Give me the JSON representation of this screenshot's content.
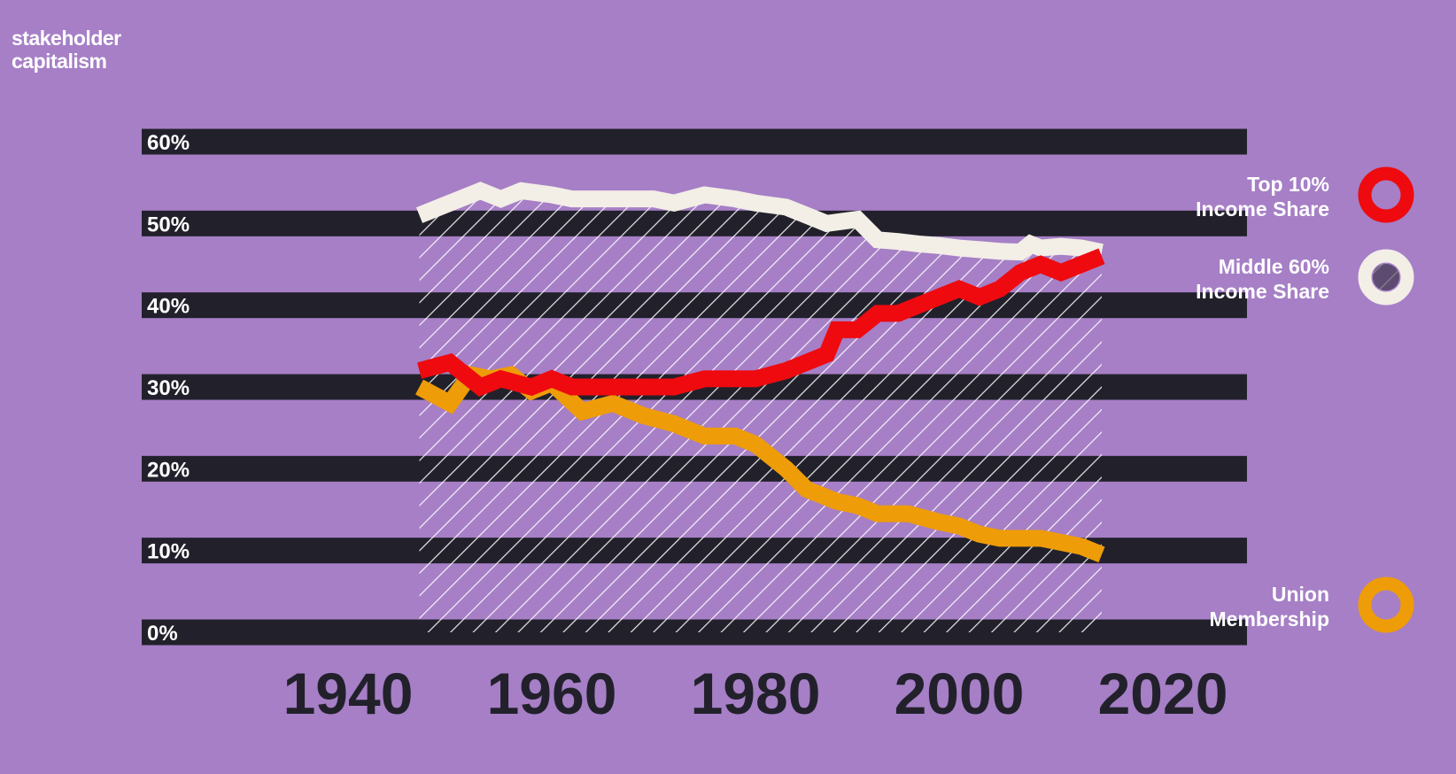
{
  "brand": {
    "line1": "stakeholder",
    "line2": "capitalism"
  },
  "colors": {
    "background": "#a67fc6",
    "band": "#22212b",
    "top10": "#ee0a0f",
    "middle60": "#f3eee6",
    "union": "#ee9c08",
    "hatch": "#ffffff"
  },
  "chart_data": {
    "type": "line",
    "title": "",
    "xlabel": "",
    "ylabel": "",
    "xlim": [
      1935,
      2023
    ],
    "ylim": [
      0,
      60
    ],
    "y_ticks": [
      {
        "value": 60,
        "label": "60%"
      },
      {
        "value": 50,
        "label": "50%"
      },
      {
        "value": 40,
        "label": "40%"
      },
      {
        "value": 30,
        "label": "30%"
      },
      {
        "value": 20,
        "label": "20%"
      },
      {
        "value": 10,
        "label": "10%"
      },
      {
        "value": 0,
        "label": "0%"
      }
    ],
    "x_ticks": [
      {
        "value": 1940,
        "label": "1940"
      },
      {
        "value": 1960,
        "label": "1960"
      },
      {
        "value": 1980,
        "label": "1980"
      },
      {
        "value": 2000,
        "label": "2000"
      },
      {
        "value": 2020,
        "label": "2020"
      }
    ],
    "grid": "horizontal dark bands at each 10% tick",
    "legend_position": "right",
    "series": [
      {
        "key": "top10",
        "name_lines": [
          "Top 10%",
          "Income Share"
        ],
        "legend_style": "ring",
        "x": [
          1947,
          1950,
          1953,
          1955,
          1958,
          1960,
          1962,
          1965,
          1968,
          1970,
          1972,
          1975,
          1978,
          1980,
          1983,
          1985,
          1987,
          1988,
          1990,
          1992,
          1994,
          1996,
          1998,
          2000,
          2002,
          2004,
          2006,
          2008,
          2010,
          2012,
          2014
        ],
        "values": [
          32,
          33,
          30,
          31,
          30,
          31,
          30,
          30,
          30,
          30,
          30,
          31,
          31,
          31,
          32,
          33,
          34,
          37,
          37,
          39,
          39,
          40,
          41,
          42,
          41,
          42,
          44,
          45,
          44,
          45,
          46
        ]
      },
      {
        "key": "middle60",
        "name_lines": [
          "Middle 60%",
          "Income Share"
        ],
        "legend_style": "ring-hatched",
        "x": [
          1947,
          1950,
          1953,
          1955,
          1957,
          1960,
          1962,
          1965,
          1968,
          1970,
          1972,
          1975,
          1978,
          1980,
          1983,
          1985,
          1987,
          1990,
          1992,
          1994,
          1996,
          1998,
          2000,
          2002,
          2004,
          2006,
          2007,
          2008,
          2010,
          2012,
          2014
        ],
        "values": [
          51,
          52.5,
          54,
          53,
          54,
          53.5,
          53,
          53,
          53,
          53,
          52.5,
          53.5,
          53,
          52.5,
          52,
          51,
          50,
          50.5,
          48,
          47.8,
          47.5,
          47.3,
          47,
          46.8,
          46.6,
          46.5,
          47.5,
          47,
          47.2,
          47,
          46.5
        ]
      },
      {
        "key": "union",
        "name_lines": [
          "Union",
          "Membership"
        ],
        "legend_style": "ring",
        "x": [
          1947,
          1950,
          1952,
          1954,
          1956,
          1958,
          1960,
          1963,
          1966,
          1969,
          1972,
          1975,
          1978,
          1980,
          1983,
          1985,
          1988,
          1990,
          1992,
          1995,
          1998,
          2000,
          2002,
          2004,
          2006,
          2008,
          2010,
          2012,
          2014
        ],
        "values": [
          30,
          28,
          31.5,
          31,
          31.5,
          29.5,
          30.5,
          27,
          28,
          26.5,
          25.5,
          24,
          24,
          23,
          20,
          17.5,
          16,
          15.5,
          14.5,
          14.5,
          13.5,
          13,
          12,
          11.5,
          11.5,
          11.5,
          11,
          10.5,
          9.5
        ]
      }
    ],
    "shaded_region": {
      "description_hidden": true,
      "x_start": 1947,
      "x_end": 2014,
      "follows_series": "middle60"
    }
  }
}
